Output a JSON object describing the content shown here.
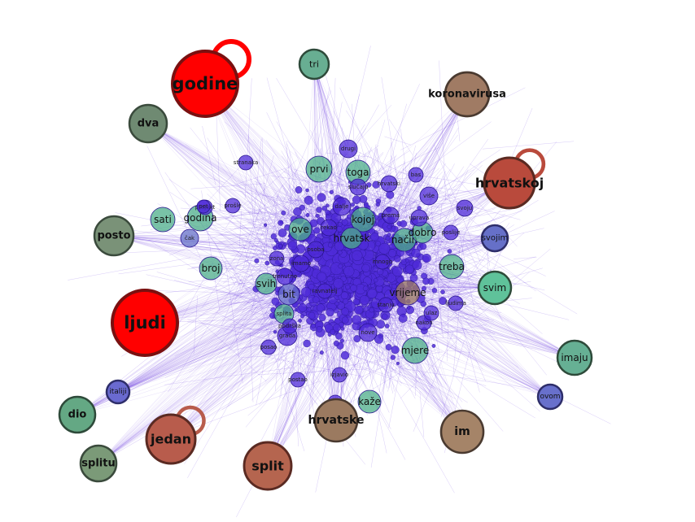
{
  "graph": {
    "edge_color": "#5b2be0",
    "small_node_color": "#4f2bd8",
    "major_nodes": [
      {
        "id": "godine",
        "label": "godine",
        "color": "#ff0000",
        "stroke": "#7a1010",
        "self_loop": true
      },
      {
        "id": "ljudi",
        "label": "ljudi",
        "color": "#ff0000",
        "stroke": "#7a1010",
        "self_loop": false
      },
      {
        "id": "hrvatskoj",
        "label": "hrvatskoj",
        "color": "#b94a3c",
        "stroke": "#5a2a22",
        "self_loop": true
      },
      {
        "id": "jedan",
        "label": "jedan",
        "color": "#b85c4c",
        "stroke": "#5a2a22",
        "self_loop": true
      },
      {
        "id": "split",
        "label": "split",
        "color": "#b5654f",
        "stroke": "#5a2a22",
        "self_loop": false
      },
      {
        "id": "koronavirusa",
        "label": "koronavirusa",
        "color": "#a07b64",
        "stroke": "#4a3a30",
        "self_loop": false
      },
      {
        "id": "im",
        "label": "im",
        "color": "#a58468",
        "stroke": "#4a3a30",
        "self_loop": false
      },
      {
        "id": "hrvatske",
        "label": "hrvatske",
        "color": "#9b7a60",
        "stroke": "#4a3a30",
        "self_loop": false
      },
      {
        "id": "dva",
        "label": "dva",
        "color": "#6f8a72",
        "stroke": "#3a4a3c",
        "self_loop": false
      },
      {
        "id": "posto",
        "label": "posto",
        "color": "#7a9278",
        "stroke": "#3a4a3c",
        "self_loop": false
      },
      {
        "id": "dio",
        "label": "dio",
        "color": "#64a884",
        "stroke": "#2e4a3a",
        "self_loop": false
      },
      {
        "id": "splitu",
        "label": "splitu",
        "color": "#7b9a78",
        "stroke": "#3a4a3c",
        "self_loop": false
      },
      {
        "id": "tri",
        "label": "tri",
        "color": "#68ae92",
        "stroke": "#2e4a3a",
        "self_loop": false
      },
      {
        "id": "imaju",
        "label": "imaju",
        "color": "#66b094",
        "stroke": "#2e4a3a",
        "self_loop": false
      },
      {
        "id": "svim",
        "label": "svim",
        "color": "#5fc29a",
        "stroke": "#2e4a3a",
        "self_loop": false
      },
      {
        "id": "svojim",
        "label": "svojim",
        "color": "#6670c8",
        "stroke": "#2e2e6a",
        "self_loop": false
      },
      {
        "id": "italiji",
        "label": "italiji",
        "color": "#6a6ad0",
        "stroke": "#2e2e6a",
        "self_loop": false
      },
      {
        "id": "ovom",
        "label": "ovom",
        "color": "#6870cc",
        "stroke": "#2e2e6a",
        "self_loop": false
      }
    ],
    "center_nodes": [
      {
        "label": "prvi",
        "color": "#4cae8a"
      },
      {
        "label": "toga",
        "color": "#4cae8a"
      },
      {
        "label": "sati",
        "color": "#4cae8a"
      },
      {
        "label": "godina",
        "color": "#4cae8a"
      },
      {
        "label": "ove",
        "color": "#4cae8a"
      },
      {
        "label": "kojoj",
        "color": "#4cae8a"
      },
      {
        "label": "hrvatsk",
        "color": "#4cae8a"
      },
      {
        "label": "način",
        "color": "#4cae8a"
      },
      {
        "label": "dobro",
        "color": "#4cae8a"
      },
      {
        "label": "treba",
        "color": "#4cae8a"
      },
      {
        "label": "broj",
        "color": "#4cae8a"
      },
      {
        "label": "svih",
        "color": "#4cae8a"
      },
      {
        "label": "bit",
        "color": "#6670c8"
      },
      {
        "label": "vrijeme",
        "color": "#9b7a60"
      },
      {
        "label": "splita",
        "color": "#4cae8a"
      },
      {
        "label": "grada",
        "color": "#4f2bd8"
      },
      {
        "label": "mjere",
        "color": "#4cae8a"
      },
      {
        "label": "kaže",
        "color": "#4cae8a"
      },
      {
        "label": "čak",
        "color": "#6670c8"
      },
      {
        "label": "dalje",
        "color": "#4f2bd8"
      },
      {
        "label": "drugi",
        "color": "#4f2bd8"
      },
      {
        "label": "više",
        "color": "#4f2bd8"
      },
      {
        "label": "slučaju",
        "color": "#4f2bd8"
      },
      {
        "label": "trenutno",
        "color": "#4f2bd8"
      },
      {
        "label": "nove",
        "color": "#4f2bd8"
      },
      {
        "label": "osoba",
        "color": "#4f2bd8"
      },
      {
        "label": "hrvatski",
        "color": "#4f2bd8"
      },
      {
        "label": "prema",
        "color": "#4f2bd8"
      },
      {
        "label": "bas",
        "color": "#4f2bd8"
      },
      {
        "label": "mnogo",
        "color": "#4f2bd8"
      },
      {
        "label": "podrška",
        "color": "#4f2bd8"
      },
      {
        "label": "uprava",
        "color": "#4f2bd8"
      },
      {
        "label": "poslije",
        "color": "#4f2bd8"
      },
      {
        "label": "kazao",
        "color": "#4f2bd8"
      },
      {
        "label": "posao",
        "color": "#4f2bd8"
      },
      {
        "label": "projekt",
        "color": "#4f2bd8"
      },
      {
        "label": "ravnatelj",
        "color": "#4f2bd8"
      },
      {
        "label": "postao",
        "color": "#4f2bd8"
      },
      {
        "label": "izjavio",
        "color": "#4f2bd8"
      },
      {
        "label": "nakon",
        "color": "#4f2bd8"
      },
      {
        "label": "ulaz",
        "color": "#4f2bd8"
      },
      {
        "label": "pet",
        "color": "#4f2bd8"
      },
      {
        "label": "imamo",
        "color": "#4f2bd8"
      },
      {
        "label": "rekao",
        "color": "#4f2bd8"
      },
      {
        "label": "prošle",
        "color": "#4f2bd8"
      },
      {
        "label": "svoju",
        "color": "#4f2bd8"
      },
      {
        "label": "stanju",
        "color": "#4f2bd8"
      },
      {
        "label": "zona",
        "color": "#4f2bd8"
      },
      {
        "label": "stranaka",
        "color": "#4f2bd8"
      },
      {
        "label": "ljudima",
        "color": "#4f2bd8"
      }
    ]
  }
}
